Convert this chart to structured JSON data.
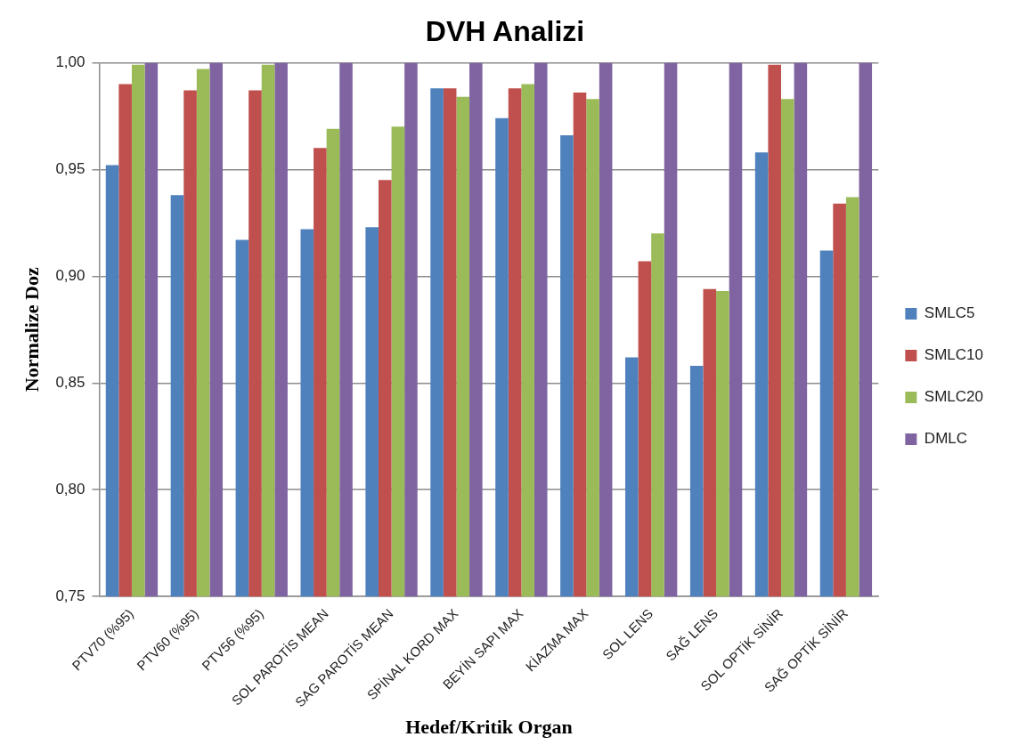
{
  "chart_data": {
    "type": "bar",
    "title": "DVH Analizi",
    "xlabel": "Hedef/Kritik Organ",
    "ylabel": "Normalize Doz",
    "categories": [
      "PTV70 (%95)",
      "PTV60 (%95)",
      "PTV56 (%95)",
      "SOL PAROTİS MEAN",
      "SAG PAROTİS MEAN",
      "SPİNAL KORD MAX",
      "BEYİN SAPI MAX",
      "KİAZMA MAX",
      "SOL LENS",
      "SAĞ LENS",
      "SOL OPTİK SİNİR",
      "SAĞ OPTİK SİNİR"
    ],
    "series": [
      {
        "name": "SMLC5",
        "color": "#4f81bd",
        "values": [
          0.952,
          0.938,
          0.917,
          0.922,
          0.923,
          0.988,
          0.974,
          0.966,
          0.862,
          0.858,
          0.958,
          0.912
        ]
      },
      {
        "name": "SMLC10",
        "color": "#c0504d",
        "values": [
          0.99,
          0.987,
          0.987,
          0.96,
          0.945,
          0.988,
          0.988,
          0.986,
          0.907,
          0.894,
          0.999,
          0.934
        ]
      },
      {
        "name": "SMLC20",
        "color": "#9bbb59",
        "values": [
          0.999,
          0.997,
          0.999,
          0.969,
          0.97,
          0.984,
          0.99,
          0.983,
          0.92,
          0.893,
          0.983,
          0.937
        ]
      },
      {
        "name": "DMLC",
        "color": "#8064a2",
        "values": [
          1.0,
          1.0,
          1.0,
          1.0,
          1.0,
          1.0,
          1.0,
          1.0,
          1.0,
          1.0,
          1.0,
          1.0
        ]
      }
    ],
    "ylim": [
      0.75,
      1.0
    ],
    "yticks": [
      {
        "value": 0.75,
        "label": "0,75"
      },
      {
        "value": 0.8,
        "label": "0,80"
      },
      {
        "value": 0.85,
        "label": "0,85"
      },
      {
        "value": 0.9,
        "label": "0,90"
      },
      {
        "value": 0.95,
        "label": "0,95"
      },
      {
        "value": 1.0,
        "label": "1,00"
      }
    ],
    "grid": "y",
    "legend": "right"
  }
}
